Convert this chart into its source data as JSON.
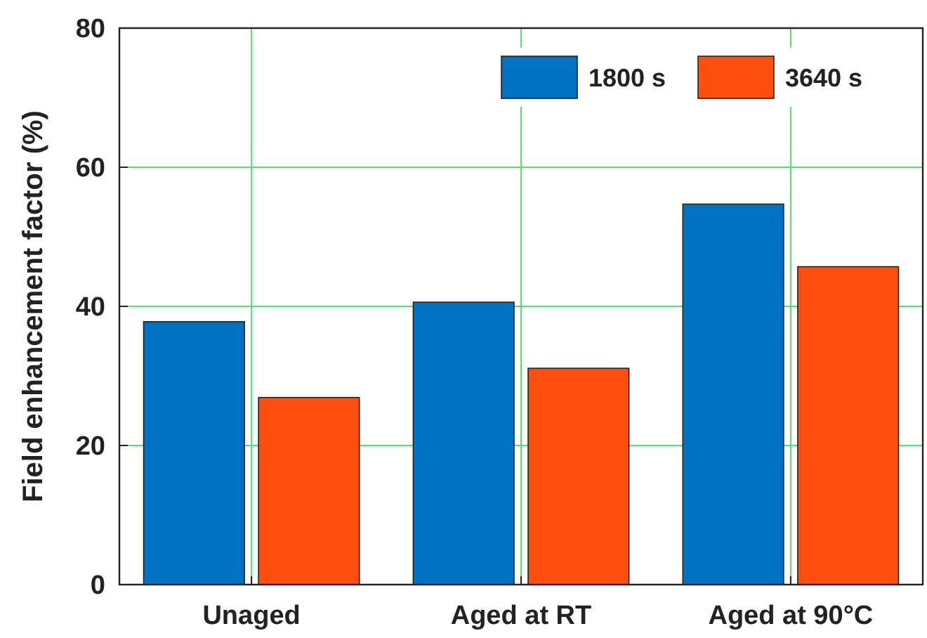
{
  "chart_data": {
    "type": "bar",
    "ylabel": "Field enhancement factor (%)",
    "categories": [
      "Unaged",
      "Aged at RT",
      "Aged at 90°C"
    ],
    "series": [
      {
        "name": "1800 s",
        "color": "#0070c0",
        "values": [
          37.8,
          40.6,
          54.7
        ]
      },
      {
        "name": "3640 s",
        "color": "#ff5010",
        "values": [
          26.9,
          31.1,
          45.7
        ]
      }
    ],
    "ylim": [
      0,
      80
    ],
    "yticks": [
      0,
      20,
      40,
      60,
      80
    ],
    "grid": true,
    "legend": "top right"
  }
}
